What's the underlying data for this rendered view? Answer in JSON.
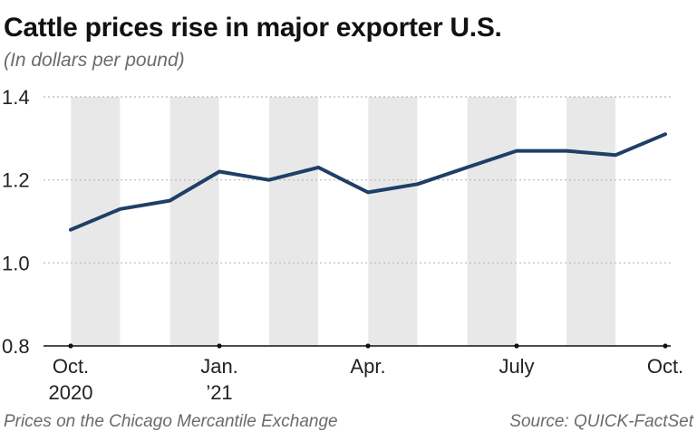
{
  "title": "Cattle prices rise in major exporter U.S.",
  "subtitle": "(In dollars per pound)",
  "footer": {
    "note": "Prices on the Chicago Mercantile Exchange",
    "source": "Source: QUICK-FactSet"
  },
  "colors": {
    "line": "#1f3f66",
    "band": "#e8e8e8",
    "grid": "#b8b8b8",
    "axis": "#111111"
  },
  "chart_data": {
    "type": "line",
    "title": "Cattle prices rise in major exporter U.S.",
    "ylabel": "In dollars per pound",
    "xlabel": "",
    "ylim": [
      0.8,
      1.4
    ],
    "yticks": [
      0.8,
      1.0,
      1.2,
      1.4
    ],
    "ytick_labels": [
      "0.8",
      "1.0",
      "1.2",
      "1.4"
    ],
    "grid": true,
    "x_ticks": [
      {
        "index": 0,
        "label": "Oct.",
        "sublabel": "2020"
      },
      {
        "index": 3,
        "label": "Jan.",
        "sublabel": "’21"
      },
      {
        "index": 6,
        "label": "Apr.",
        "sublabel": ""
      },
      {
        "index": 9,
        "label": "July",
        "sublabel": ""
      },
      {
        "index": 12,
        "label": "Oct.",
        "sublabel": ""
      }
    ],
    "series": [
      {
        "name": "Cattle price",
        "values": [
          1.08,
          1.13,
          1.15,
          1.22,
          1.2,
          1.23,
          1.17,
          1.19,
          1.23,
          1.27,
          1.27,
          1.26,
          1.31
        ]
      }
    ]
  }
}
